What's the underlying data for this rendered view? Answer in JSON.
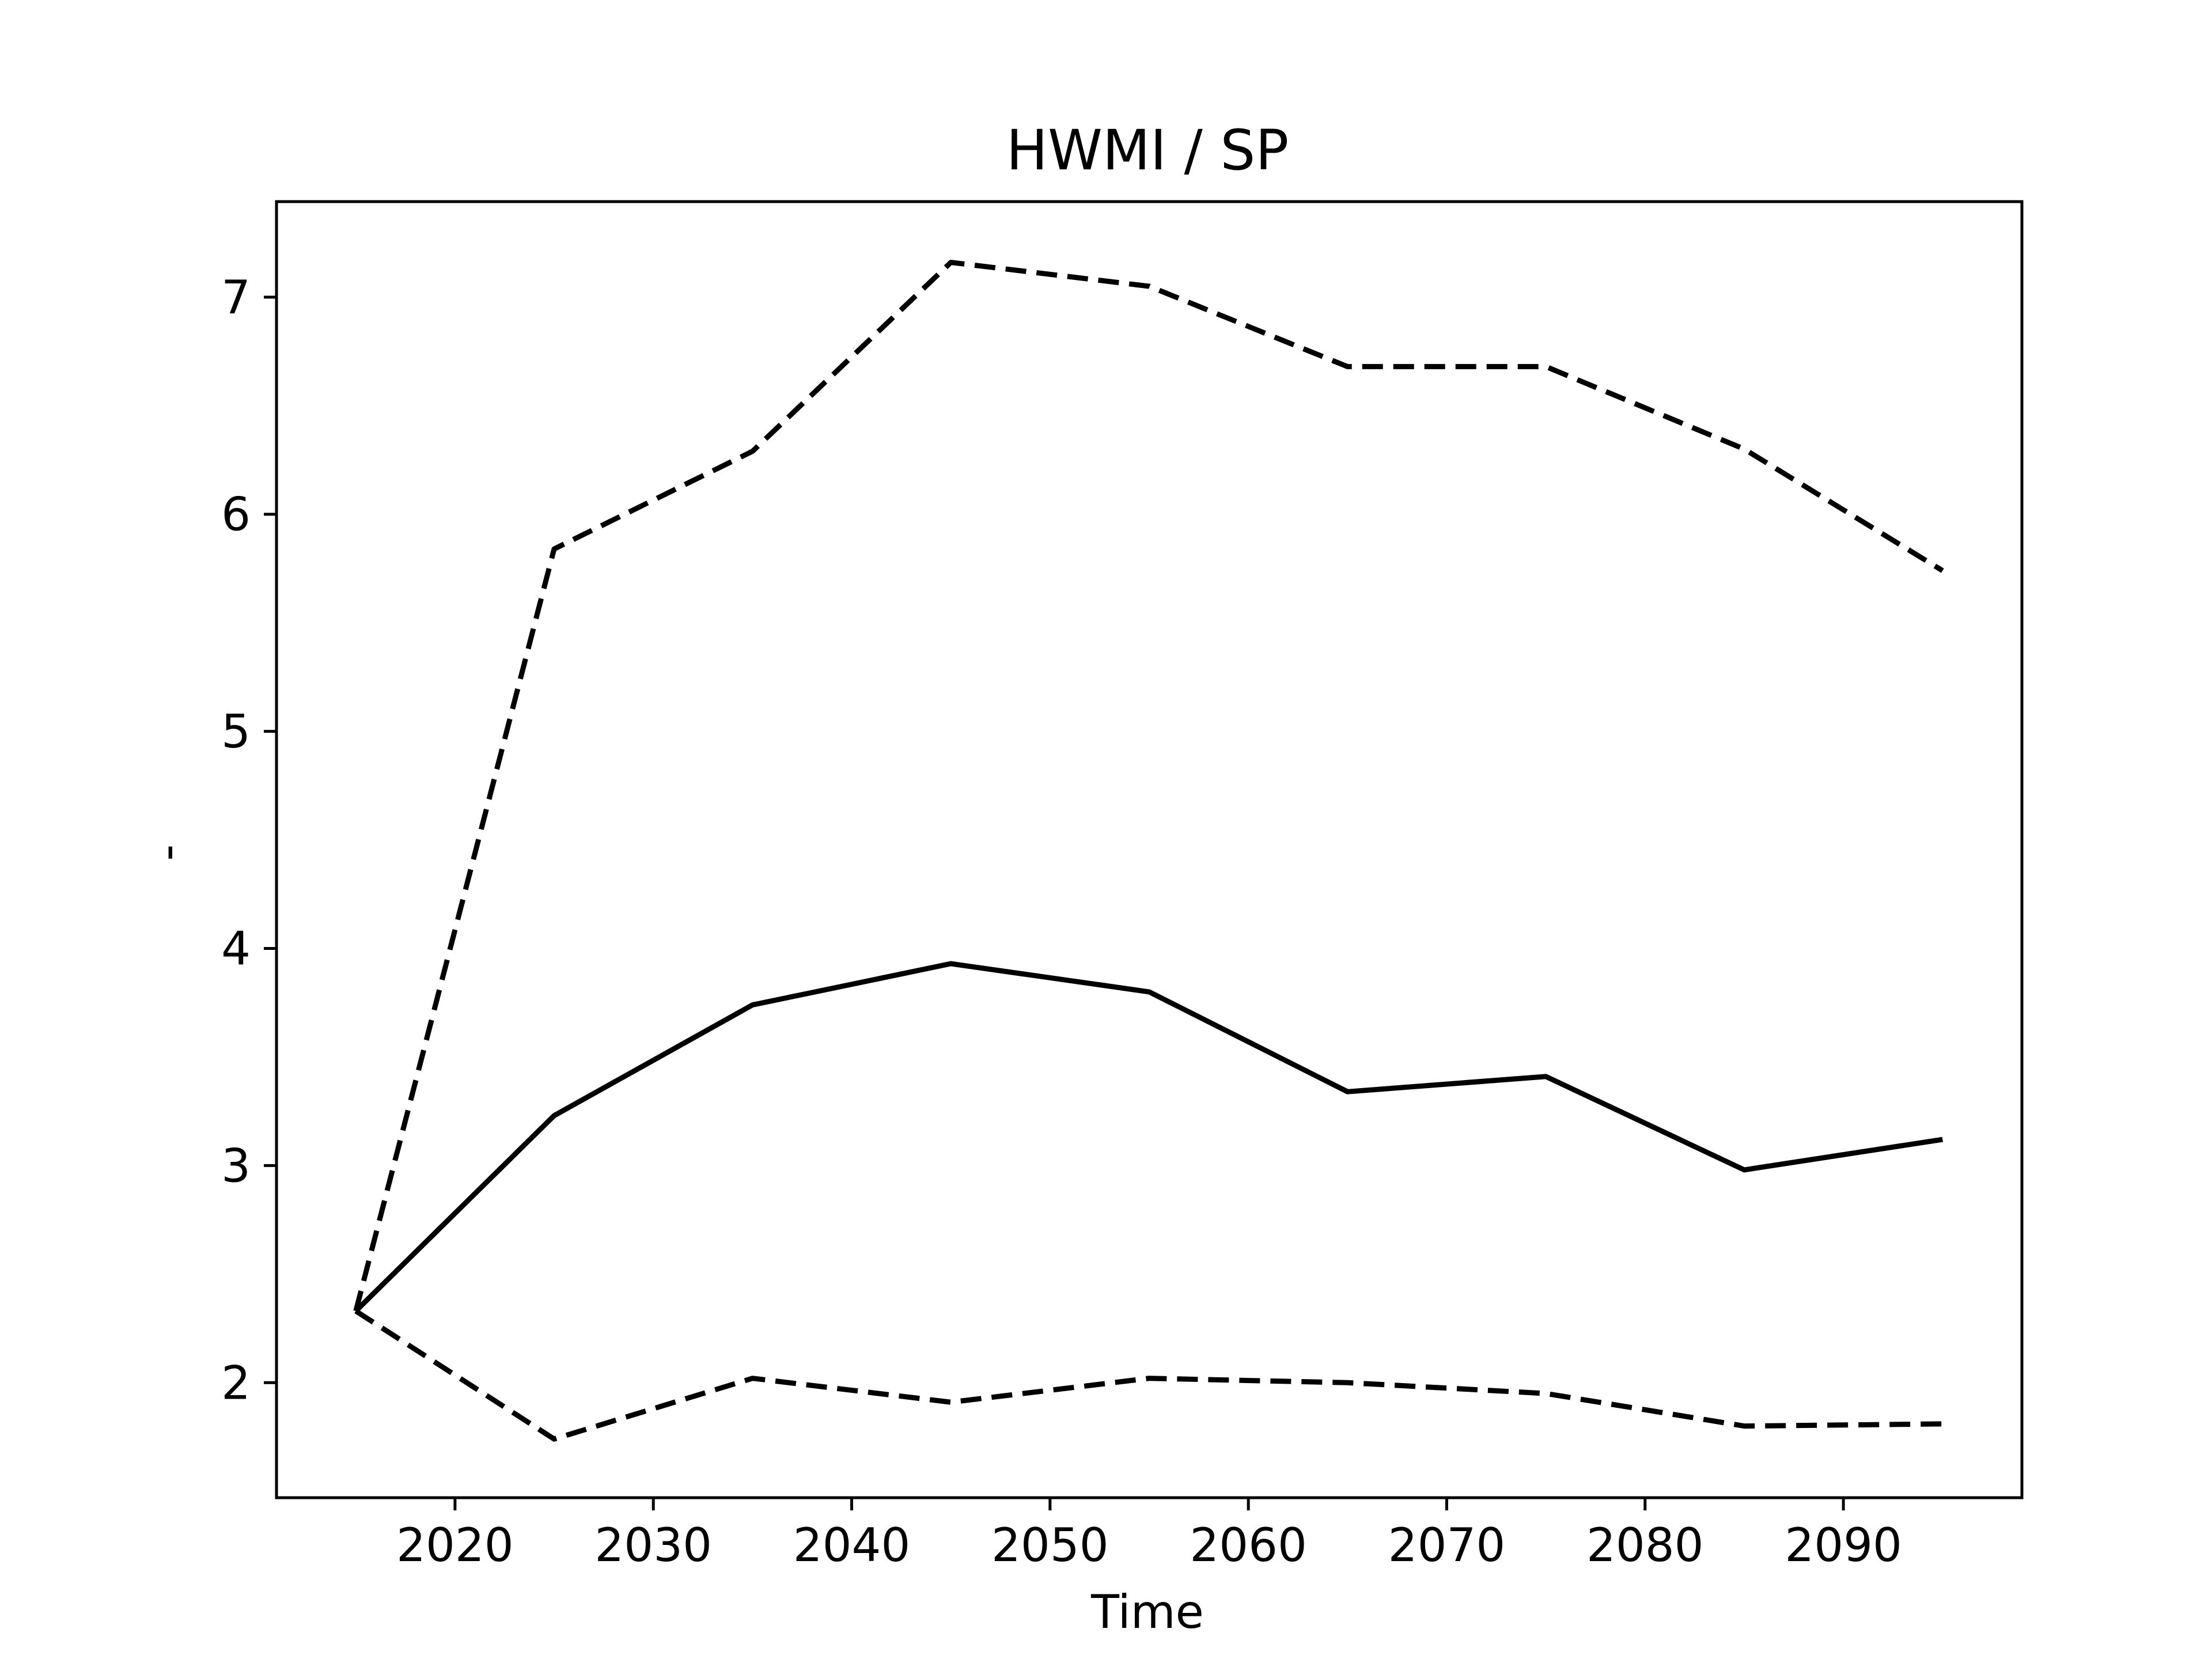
{
  "chart_data": {
    "type": "line",
    "title": "HWMI / SP",
    "xlabel": "Time",
    "ylabel": "-",
    "x": [
      2015,
      2025,
      2035,
      2045,
      2055,
      2065,
      2075,
      2085,
      2095
    ],
    "xlim": [
      2011,
      2099
    ],
    "ylim": [
      1.47,
      7.44
    ],
    "xticks": [
      2020,
      2030,
      2040,
      2050,
      2060,
      2070,
      2080,
      2090
    ],
    "yticks": [
      2,
      3,
      4,
      5,
      6,
      7
    ],
    "grid": false,
    "legend": "none",
    "series": [
      {
        "style": "dashed",
        "color": "#000000",
        "values": [
          2.33,
          5.84,
          6.29,
          7.16,
          7.05,
          6.68,
          6.68,
          6.3,
          5.74
        ]
      },
      {
        "style": "solid",
        "color": "#000000",
        "values": [
          2.33,
          3.23,
          3.74,
          3.93,
          3.8,
          3.34,
          3.41,
          2.98,
          3.12
        ]
      },
      {
        "style": "dashed",
        "color": "#000000",
        "values": [
          2.33,
          1.74,
          2.02,
          1.91,
          2.02,
          2.0,
          1.95,
          1.8,
          1.81
        ]
      }
    ]
  }
}
